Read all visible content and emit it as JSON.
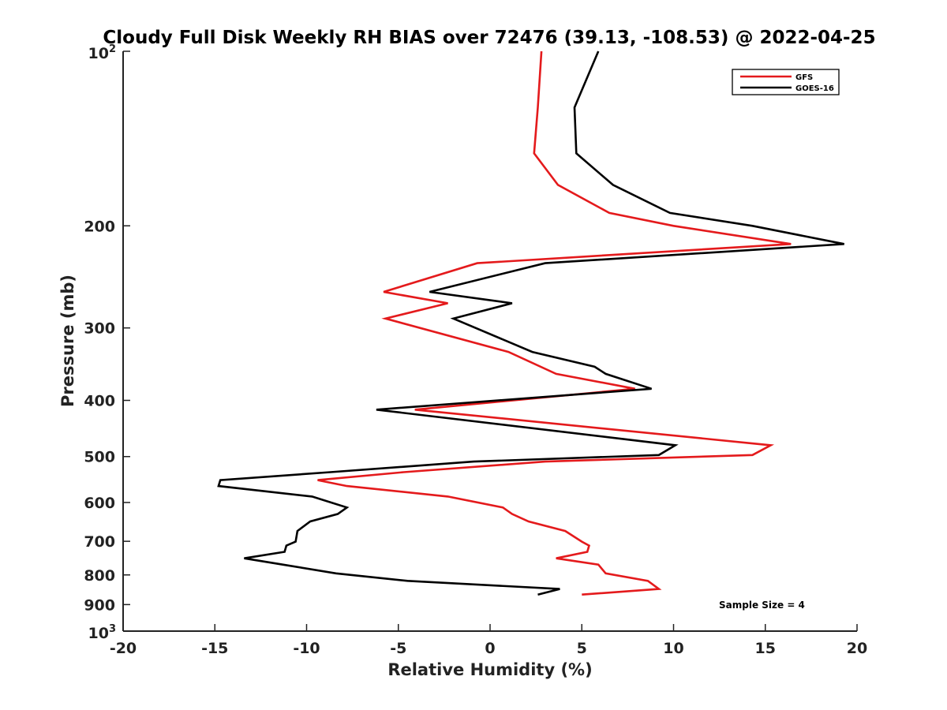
{
  "chart_data": {
    "type": "line",
    "title": "Cloudy Full Disk Weekly RH BIAS over 72476 (39.13, -108.53) @ 2022-04-25",
    "xlabel": "Relative Humidity (%)",
    "ylabel": "Pressure (mb)",
    "xlim": [
      -20,
      20
    ],
    "ylim": [
      1000,
      100
    ],
    "yscale": "log",
    "y_reversed": true,
    "grid": false,
    "legend_position": "top-right",
    "x_ticks": [
      -20,
      -15,
      -10,
      -5,
      0,
      5,
      10,
      15,
      20
    ],
    "x_tick_labels": [
      "-20",
      "-15",
      "-10",
      "-5",
      "0",
      "5",
      "10",
      "15",
      "20"
    ],
    "y_ticks": [
      200,
      300,
      400,
      500,
      600,
      700,
      800,
      900
    ],
    "y_tick_labels": [
      "200",
      "300",
      "400",
      "500",
      "600",
      "700",
      "800",
      "900"
    ],
    "y_top_label": {
      "base": "10",
      "exp": "2"
    },
    "y_bottom_label": {
      "base": "10",
      "exp": "3"
    },
    "series": [
      {
        "name": "GFS",
        "color": "#e41a1c",
        "points": [
          [
            2.8,
            100
          ],
          [
            2.6,
            125
          ],
          [
            2.4,
            150
          ],
          [
            3.7,
            170
          ],
          [
            6.5,
            190
          ],
          [
            10.0,
            200
          ],
          [
            16.4,
            215
          ],
          [
            -0.7,
            232
          ],
          [
            -5.8,
            260
          ],
          [
            -2.3,
            272
          ],
          [
            -5.7,
            289
          ],
          [
            1.0,
            330
          ],
          [
            3.6,
            360
          ],
          [
            7.9,
            382
          ],
          [
            -4.1,
            415
          ],
          [
            15.3,
            478
          ],
          [
            14.3,
            497
          ],
          [
            3.0,
            510
          ],
          [
            -4.7,
            532
          ],
          [
            -9.4,
            549
          ],
          [
            -7.8,
            562
          ],
          [
            -2.3,
            586
          ],
          [
            0.7,
            612
          ],
          [
            1.2,
            628
          ],
          [
            2.1,
            647
          ],
          [
            4.1,
            672
          ],
          [
            5.0,
            701
          ],
          [
            5.4,
            712
          ],
          [
            5.3,
            730
          ],
          [
            3.6,
            749
          ],
          [
            5.9,
            768
          ],
          [
            6.3,
            795
          ],
          [
            8.6,
            819
          ],
          [
            9.2,
            846
          ],
          [
            5.0,
            865
          ]
        ]
      },
      {
        "name": "GOES-16",
        "color": "#000000",
        "points": [
          [
            5.9,
            100
          ],
          [
            4.6,
            125
          ],
          [
            4.7,
            150
          ],
          [
            6.7,
            170
          ],
          [
            9.8,
            190
          ],
          [
            14.3,
            200
          ],
          [
            19.3,
            215
          ],
          [
            3.0,
            232
          ],
          [
            -3.3,
            260
          ],
          [
            1.2,
            272
          ],
          [
            -2.0,
            289
          ],
          [
            2.3,
            330
          ],
          [
            5.7,
            350
          ],
          [
            6.3,
            360
          ],
          [
            8.8,
            382
          ],
          [
            -6.2,
            415
          ],
          [
            10.1,
            478
          ],
          [
            9.2,
            497
          ],
          [
            -0.9,
            510
          ],
          [
            -8.7,
            532
          ],
          [
            -14.7,
            549
          ],
          [
            -14.8,
            562
          ],
          [
            -9.7,
            586
          ],
          [
            -7.8,
            612
          ],
          [
            -8.3,
            628
          ],
          [
            -9.8,
            647
          ],
          [
            -10.5,
            672
          ],
          [
            -10.6,
            701
          ],
          [
            -11.1,
            712
          ],
          [
            -11.2,
            730
          ],
          [
            -13.4,
            749
          ],
          [
            -11.3,
            768
          ],
          [
            -8.4,
            795
          ],
          [
            -4.5,
            819
          ],
          [
            3.8,
            846
          ],
          [
            2.6,
            865
          ]
        ]
      }
    ],
    "annotations": [
      "Sample Size = 4"
    ]
  }
}
